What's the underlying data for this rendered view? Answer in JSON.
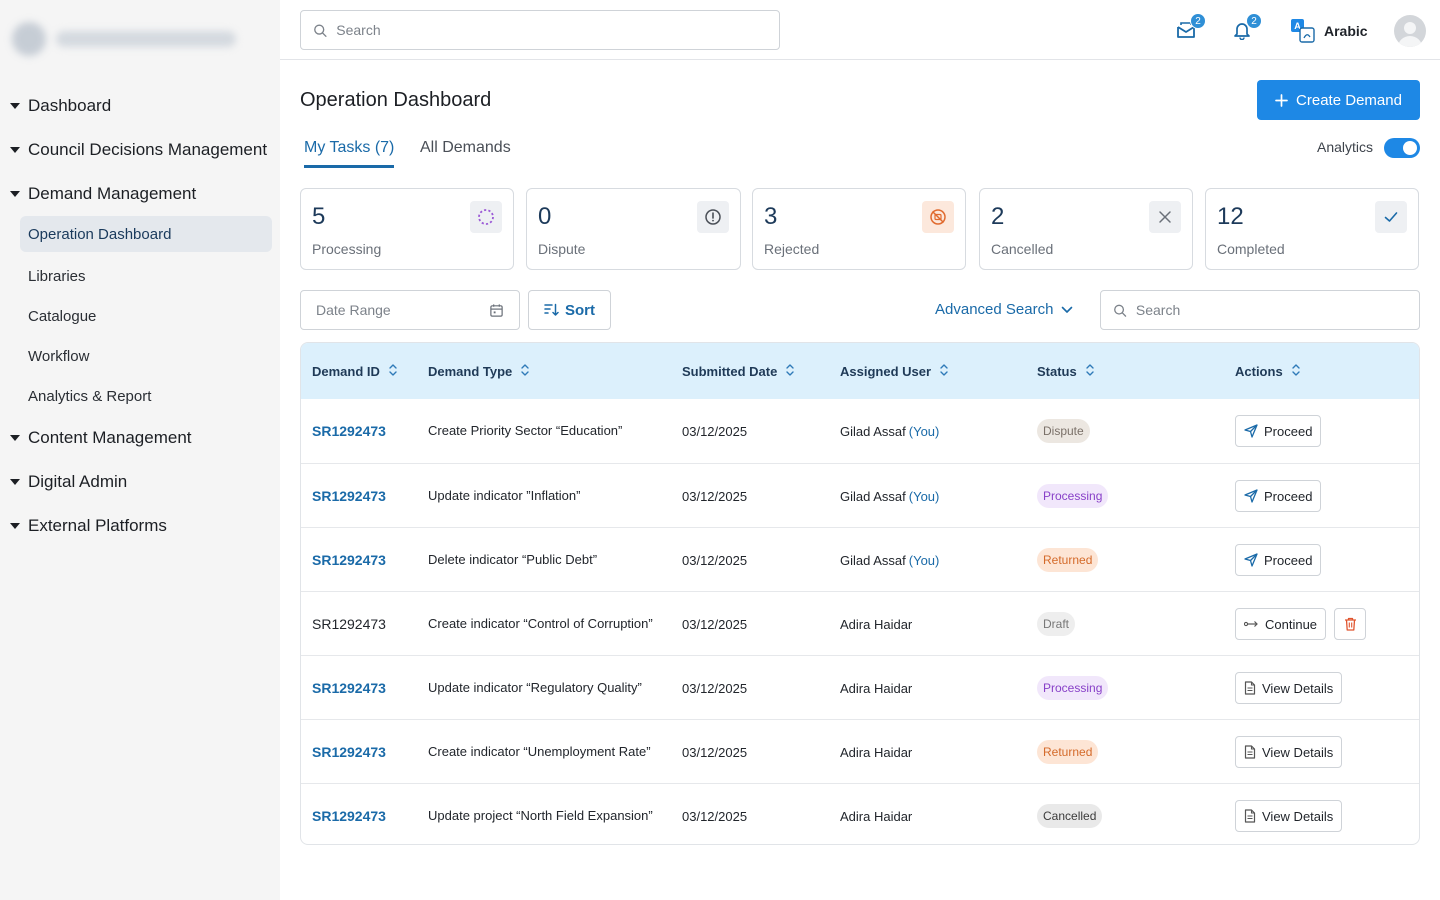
{
  "sidebar": {
    "items": [
      {
        "label": "Dashboard",
        "type": "group"
      },
      {
        "label": "Council Decisions Management",
        "type": "group"
      },
      {
        "label": "Demand Management",
        "type": "group"
      },
      {
        "label": "Operation Dashboard",
        "type": "sub",
        "active": true
      },
      {
        "label": "Libraries",
        "type": "sub"
      },
      {
        "label": "Catalogue",
        "type": "sub"
      },
      {
        "label": "Workflow",
        "type": "sub"
      },
      {
        "label": "Analytics & Report",
        "type": "sub"
      },
      {
        "label": "Content Management",
        "type": "group"
      },
      {
        "label": "Digital Admin",
        "type": "group"
      },
      {
        "label": "External Platforms",
        "type": "group"
      }
    ]
  },
  "topbar": {
    "search_placeholder": "Search",
    "mail_count": "2",
    "notification_count": "2",
    "language_label": "Arabic"
  },
  "page": {
    "title": "Operation Dashboard",
    "create_label": "Create Demand",
    "tabs": [
      {
        "label": "My Tasks (7)",
        "active": true
      },
      {
        "label": "All Demands",
        "active": false
      }
    ],
    "analytics_label": "Analytics",
    "analytics_on": true
  },
  "stats": [
    {
      "value": "5",
      "label": "Processing",
      "icon": "processing-icon",
      "color": "#9b59d6"
    },
    {
      "value": "0",
      "label": "Dispute",
      "icon": "alert-circle-icon",
      "color": "#4a4f57"
    },
    {
      "value": "3",
      "label": "Rejected",
      "icon": "rejected-icon",
      "color": "#e06a2e"
    },
    {
      "value": "2",
      "label": "Cancelled",
      "icon": "close-icon",
      "color": "#6a7079"
    },
    {
      "value": "12",
      "label": "Completed",
      "icon": "check-icon",
      "color": "#1a6aa8"
    }
  ],
  "filters": {
    "date_placeholder": "Date Range",
    "sort_label": "Sort",
    "advanced_label": "Advanced Search",
    "search_placeholder": "Search"
  },
  "table": {
    "headers": [
      "Demand ID",
      "Demand Type",
      "Submitted Date",
      "Assigned User",
      "Status",
      "Actions"
    ],
    "rows": [
      {
        "id": "SR1292473",
        "id_link": true,
        "type": "Create Priority Sector “Education”",
        "date": "03/12/2025",
        "user": "Gilad Assaf",
        "you": "(You)",
        "status": "Dispute",
        "status_class": "b-dispute",
        "action": "Proceed",
        "action_icon": "send-icon"
      },
      {
        "id": "SR1292473",
        "id_link": true,
        "type": "Update indicator ”Inflation”",
        "date": "03/12/2025",
        "user": "Gilad Assaf",
        "you": "(You)",
        "status": "Processing",
        "status_class": "b-processing",
        "action": "Proceed",
        "action_icon": "send-icon"
      },
      {
        "id": "SR1292473",
        "id_link": true,
        "type": "Delete indicator “Public Debt”",
        "date": "03/12/2025",
        "user": "Gilad Assaf",
        "you": "(You)",
        "status": "Returned",
        "status_class": "b-returned",
        "action": "Proceed",
        "action_icon": "send-icon"
      },
      {
        "id": "SR1292473",
        "id_link": false,
        "type": "Create indicator “Control of Corruption”",
        "date": "03/12/2025",
        "user": "Adira Haidar",
        "you": "",
        "status": "Draft",
        "status_class": "b-draft",
        "action": "Continue",
        "action_icon": "continue-icon",
        "deletable": true
      },
      {
        "id": "SR1292473",
        "id_link": true,
        "type": "Update indicator “Regulatory Quality”",
        "date": "03/12/2025",
        "user": "Adira Haidar",
        "you": "",
        "status": "Processing",
        "status_class": "b-processing",
        "action": "View Details",
        "action_icon": "document-icon"
      },
      {
        "id": "SR1292473",
        "id_link": true,
        "type": "Create indicator “Unemployment Rate”",
        "date": "03/12/2025",
        "user": "Adira Haidar",
        "you": "",
        "status": "Returned",
        "status_class": "b-returned",
        "action": "View Details",
        "action_icon": "document-icon"
      },
      {
        "id": "SR1292473",
        "id_link": true,
        "type": "Update project “North Field Expansion”",
        "date": "03/12/2025",
        "user": "Adira Haidar",
        "you": "",
        "status": "Cancelled",
        "status_class": "b-cancelled",
        "action": "View Details",
        "action_icon": "document-icon"
      }
    ]
  },
  "colors": {
    "accent": "#1e88e5",
    "link": "#1a6aa8",
    "header_bg": "#dcf0fc",
    "sidebar_bg": "#f5f5f5"
  }
}
